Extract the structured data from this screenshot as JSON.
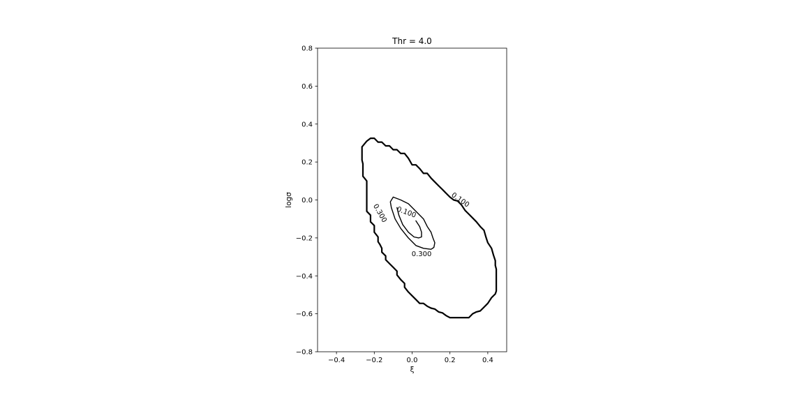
{
  "chart_data": {
    "type": "contour",
    "title": "Thr = 4.0",
    "xlabel": "ξ",
    "ylabel": "logσ",
    "xlim": [
      -0.5,
      0.5
    ],
    "ylim": [
      -0.8,
      0.8
    ],
    "xticks": [
      -0.4,
      -0.2,
      0.0,
      0.2,
      0.4
    ],
    "xtick_labels": [
      "−0.4",
      "−0.2",
      "0.0",
      "0.2",
      "0.4"
    ],
    "yticks": [
      0.8,
      0.6,
      0.4,
      0.2,
      0.0,
      -0.2,
      -0.4,
      -0.6,
      -0.8
    ],
    "ytick_labels": [
      "0.8",
      "0.6",
      "0.4",
      "0.2",
      "0.0",
      "−0.2",
      "−0.4",
      "−0.6",
      "−0.8"
    ],
    "grid": false,
    "contours": [
      {
        "level_label": "0.100",
        "line_color": "#000000",
        "thick": true,
        "points": [
          [
            -0.265,
            0.28
          ],
          [
            -0.24,
            0.31
          ],
          [
            -0.22,
            0.325
          ],
          [
            -0.2,
            0.325
          ],
          [
            -0.18,
            0.305
          ],
          [
            -0.16,
            0.305
          ],
          [
            -0.14,
            0.285
          ],
          [
            -0.12,
            0.285
          ],
          [
            -0.1,
            0.265
          ],
          [
            -0.08,
            0.265
          ],
          [
            -0.06,
            0.245
          ],
          [
            -0.04,
            0.245
          ],
          [
            -0.02,
            0.22
          ],
          [
            0.0,
            0.185
          ],
          [
            0.02,
            0.185
          ],
          [
            0.04,
            0.165
          ],
          [
            0.06,
            0.14
          ],
          [
            0.08,
            0.14
          ],
          [
            0.1,
            0.115
          ],
          [
            0.12,
            0.095
          ],
          [
            0.14,
            0.075
          ],
          [
            0.16,
            0.055
          ],
          [
            0.18,
            0.035
          ],
          [
            0.2,
            0.015
          ],
          [
            0.22,
            0.0
          ],
          [
            0.24,
            -0.005
          ],
          [
            0.26,
            -0.025
          ],
          [
            0.28,
            -0.055
          ],
          [
            0.3,
            -0.075
          ],
          [
            0.32,
            -0.095
          ],
          [
            0.34,
            -0.115
          ],
          [
            0.36,
            -0.14
          ],
          [
            0.38,
            -0.16
          ],
          [
            0.39,
            -0.195
          ],
          [
            0.4,
            -0.225
          ],
          [
            0.42,
            -0.255
          ],
          [
            0.43,
            -0.29
          ],
          [
            0.44,
            -0.32
          ],
          [
            0.44,
            -0.345
          ],
          [
            0.445,
            -0.365
          ],
          [
            0.445,
            -0.48
          ],
          [
            0.44,
            -0.495
          ],
          [
            0.42,
            -0.515
          ],
          [
            0.4,
            -0.545
          ],
          [
            0.38,
            -0.565
          ],
          [
            0.36,
            -0.585
          ],
          [
            0.34,
            -0.59
          ],
          [
            0.32,
            -0.6
          ],
          [
            0.3,
            -0.62
          ],
          [
            0.2,
            -0.62
          ],
          [
            0.18,
            -0.61
          ],
          [
            0.16,
            -0.595
          ],
          [
            0.14,
            -0.59
          ],
          [
            0.12,
            -0.575
          ],
          [
            0.1,
            -0.57
          ],
          [
            0.08,
            -0.56
          ],
          [
            0.06,
            -0.545
          ],
          [
            0.04,
            -0.545
          ],
          [
            0.02,
            -0.525
          ],
          [
            0.0,
            -0.505
          ],
          [
            -0.02,
            -0.485
          ],
          [
            -0.04,
            -0.46
          ],
          [
            -0.04,
            -0.44
          ],
          [
            -0.06,
            -0.42
          ],
          [
            -0.08,
            -0.395
          ],
          [
            -0.08,
            -0.375
          ],
          [
            -0.1,
            -0.355
          ],
          [
            -0.12,
            -0.335
          ],
          [
            -0.14,
            -0.315
          ],
          [
            -0.14,
            -0.295
          ],
          [
            -0.16,
            -0.275
          ],
          [
            -0.16,
            -0.255
          ],
          [
            -0.17,
            -0.235
          ],
          [
            -0.18,
            -0.22
          ],
          [
            -0.18,
            -0.195
          ],
          [
            -0.2,
            -0.17
          ],
          [
            -0.2,
            -0.135
          ],
          [
            -0.22,
            -0.115
          ],
          [
            -0.22,
            -0.08
          ],
          [
            -0.24,
            -0.06
          ],
          [
            -0.24,
            0.1
          ],
          [
            -0.26,
            0.125
          ],
          [
            -0.26,
            0.19
          ],
          [
            -0.265,
            0.21
          ],
          [
            -0.265,
            0.28
          ]
        ]
      },
      {
        "level_label": "0.300",
        "line_color": "#000000",
        "thick": false,
        "points": [
          [
            -0.1,
            0.015
          ],
          [
            -0.06,
            0.0
          ],
          [
            -0.02,
            -0.02
          ],
          [
            0.02,
            -0.06
          ],
          [
            0.06,
            -0.1
          ],
          [
            0.08,
            -0.14
          ],
          [
            0.1,
            -0.17
          ],
          [
            0.11,
            -0.2
          ],
          [
            0.12,
            -0.225
          ],
          [
            0.115,
            -0.25
          ],
          [
            0.1,
            -0.26
          ],
          [
            0.06,
            -0.255
          ],
          [
            0.02,
            -0.24
          ],
          [
            -0.02,
            -0.2
          ],
          [
            -0.06,
            -0.15
          ],
          [
            -0.09,
            -0.1
          ],
          [
            -0.11,
            -0.04
          ],
          [
            -0.115,
            -0.01
          ],
          [
            -0.1,
            0.015
          ]
        ]
      },
      {
        "level_label": "",
        "line_color": "#000000",
        "thick": false,
        "points": [
          [
            0.02,
            -0.11
          ],
          [
            0.04,
            -0.14
          ],
          [
            0.05,
            -0.17
          ],
          [
            0.05,
            -0.195
          ],
          [
            0.035,
            -0.2
          ],
          [
            0.01,
            -0.195
          ],
          [
            -0.02,
            -0.17
          ],
          [
            -0.05,
            -0.13
          ],
          [
            -0.07,
            -0.08
          ],
          [
            -0.08,
            -0.04
          ]
        ]
      }
    ],
    "inline_labels": [
      {
        "text": "0.100",
        "x": 0.255,
        "y": 0.0,
        "angle": 35
      },
      {
        "text": "0.100",
        "x": -0.03,
        "y": -0.065,
        "angle": 20
      },
      {
        "text": "0.300",
        "x": -0.17,
        "y": -0.07,
        "angle": 60
      },
      {
        "text": "0.300",
        "x": 0.05,
        "y": -0.285,
        "angle": 0
      }
    ]
  }
}
